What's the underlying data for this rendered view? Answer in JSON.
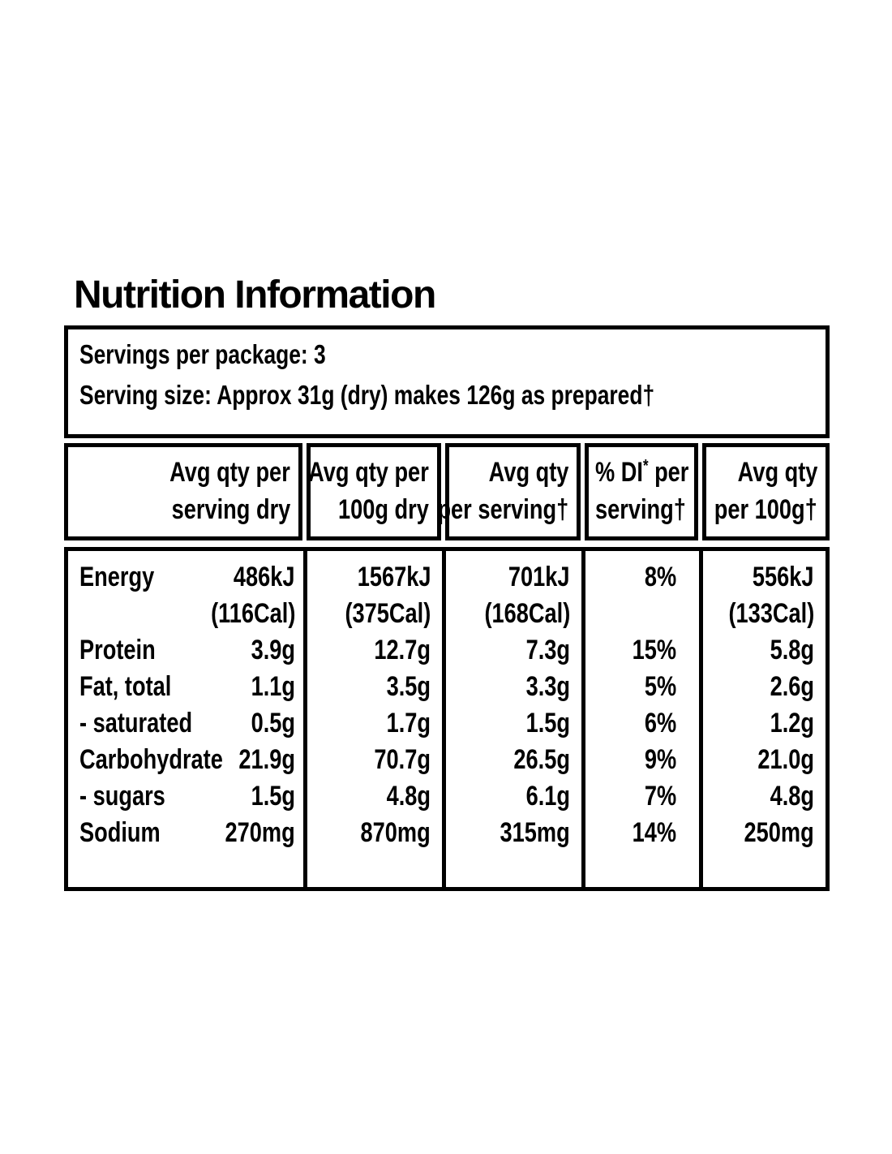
{
  "page": {
    "background": "#ffffff",
    "ink": "#000000"
  },
  "title": "Nutrition Information",
  "servings_box": {
    "line1": "Servings per package: 3",
    "line2": "Serving size: Approx 31g (dry) makes 126g as prepared†"
  },
  "header": {
    "col1": {
      "line1": "Avg qty per",
      "line2": "serving dry"
    },
    "col2": {
      "line1": "Avg qty per",
      "line2": "100g dry"
    },
    "col3": {
      "line1": "Avg qty",
      "line2": "per serving†"
    },
    "col4": {
      "line1_prefix": "% DI",
      "line1_sup": "*",
      "line1_suffix": " per",
      "line2": "serving†"
    },
    "col5": {
      "line1": "Avg qty",
      "line2": "per 100g†"
    }
  },
  "rows": [
    {
      "nutrient": "Energy",
      "serving_dry": "486kJ",
      "dry_100g": "1567kJ",
      "per_serving": "701kJ",
      "di": "8%",
      "per_100g": "556kJ"
    },
    {
      "nutrient": "",
      "serving_dry": "(116Cal)",
      "dry_100g": "(375Cal)",
      "per_serving": "(168Cal)",
      "di": "",
      "per_100g": "(133Cal)"
    },
    {
      "nutrient": "Protein",
      "serving_dry": "3.9g",
      "dry_100g": "12.7g",
      "per_serving": "7.3g",
      "di": "15%",
      "per_100g": "5.8g"
    },
    {
      "nutrient": "Fat, total",
      "serving_dry": "1.1g",
      "dry_100g": "3.5g",
      "per_serving": "3.3g",
      "di": "5%",
      "per_100g": "2.6g"
    },
    {
      "nutrient": "- saturated",
      "serving_dry": "0.5g",
      "dry_100g": "1.7g",
      "per_serving": "1.5g",
      "di": "6%",
      "per_100g": "1.2g"
    },
    {
      "nutrient": "Carbohydrate",
      "serving_dry": "21.9g",
      "dry_100g": "70.7g",
      "per_serving": "26.5g",
      "di": "9%",
      "per_100g": "21.0g"
    },
    {
      "nutrient": "- sugars",
      "serving_dry": "1.5g",
      "dry_100g": "4.8g",
      "per_serving": "6.1g",
      "di": "7%",
      "per_100g": "4.8g"
    },
    {
      "nutrient": "Sodium",
      "serving_dry": "270mg",
      "dry_100g": "870mg",
      "per_serving": "315mg",
      "di": "14%",
      "per_100g": "250mg"
    }
  ]
}
